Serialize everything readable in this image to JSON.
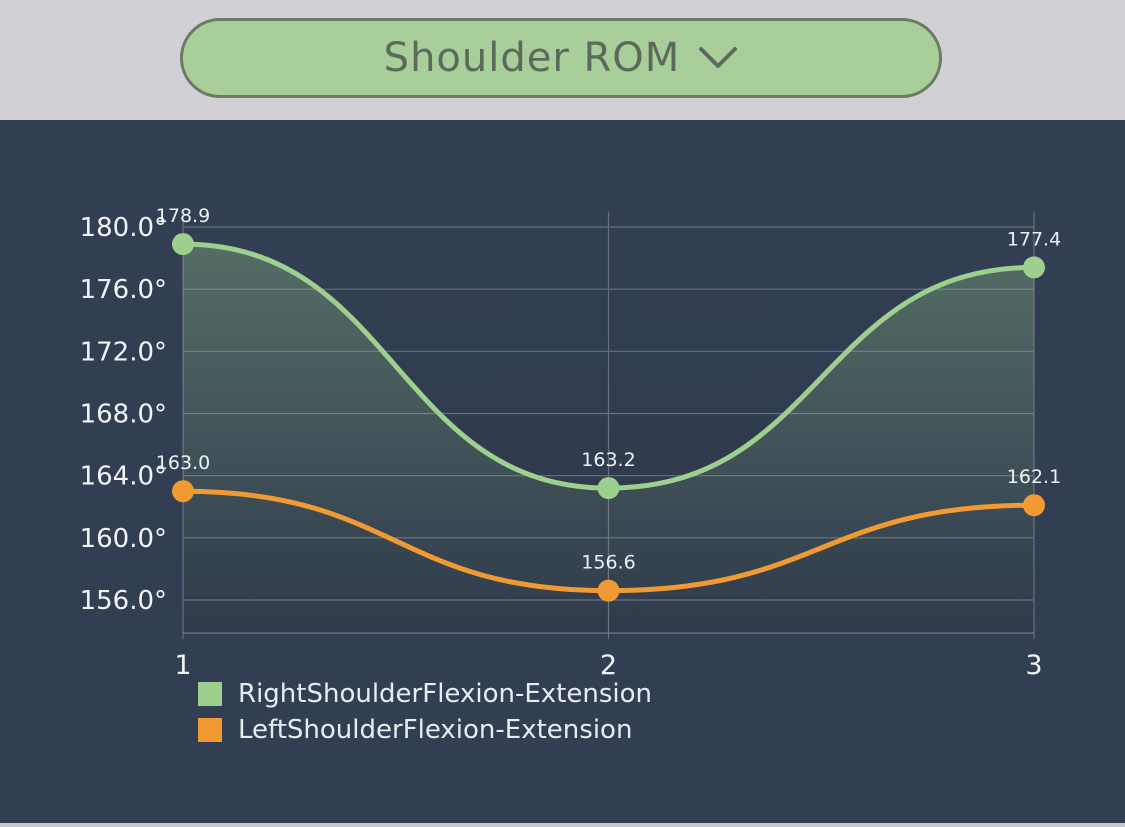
{
  "header": {
    "selector_label": "Shoulder ROM",
    "selector_icon": "chevron-down-icon"
  },
  "colors": {
    "right": "#9dcf8f",
    "left": "#f19a34",
    "panel": "#323f52"
  },
  "chart_data": {
    "type": "line",
    "x": [
      1,
      2,
      3
    ],
    "x_tick_labels": [
      "1",
      "2",
      "3"
    ],
    "ylim": [
      154.0,
      181.0
    ],
    "y_ticks": [
      156,
      160,
      164,
      168,
      172,
      176,
      180
    ],
    "y_tick_labels": [
      "156.0°",
      "160.0°",
      "164.0°",
      "168.0°",
      "172.0°",
      "176.0°",
      "180.0°"
    ],
    "grid": true,
    "legend_position": "bottom-left",
    "series": [
      {
        "name": "RightShoulderFlexion-Extension",
        "values": [
          178.9,
          163.2,
          177.4
        ],
        "labels": [
          "178.9",
          "163.2",
          "177.4"
        ],
        "color": "#9dcf8f",
        "filled": true
      },
      {
        "name": "LeftShoulderFlexion-Extension",
        "values": [
          163.0,
          156.6,
          162.1
        ],
        "labels": [
          "163.0",
          "156.6",
          "162.1"
        ],
        "color": "#f19a34",
        "filled": false
      }
    ]
  }
}
